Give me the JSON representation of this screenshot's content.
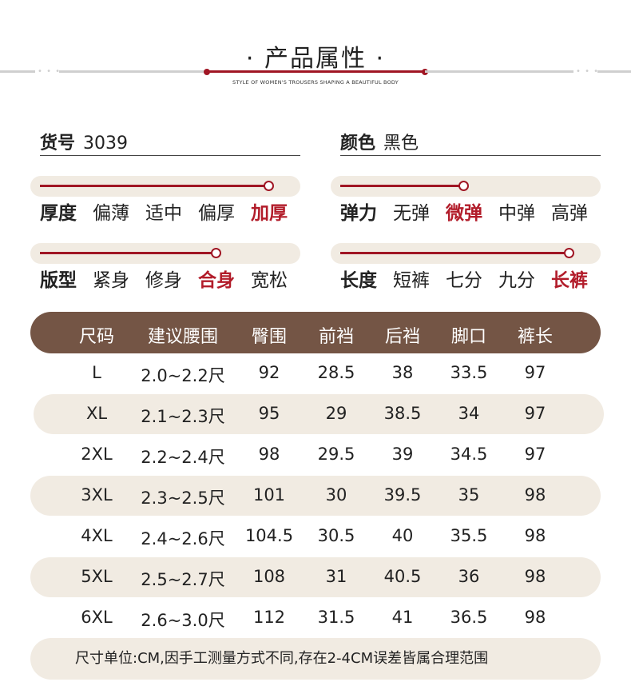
{
  "header": {
    "title": "· 产品属性 ·",
    "subtitle": "STYLE OF WOMEN'S TROUSERS SHAPING A BEAUTIFUL BODY"
  },
  "info": {
    "item_label": "货号",
    "item_value": "3039",
    "color_label": "颜色",
    "color_value": "黑色"
  },
  "attributes": {
    "thickness": {
      "label": "厚度",
      "options": [
        "偏薄",
        "适中",
        "偏厚",
        "加厚"
      ],
      "selected": 3,
      "level": 1.0
    },
    "elasticity": {
      "label": "弹力",
      "options": [
        "无弹",
        "微弹",
        "中弹",
        "高弹"
      ],
      "selected": 1,
      "level": 0.5
    },
    "fit": {
      "label": "版型",
      "options": [
        "紧身",
        "修身",
        "合身",
        "宽松"
      ],
      "selected": 2,
      "level": 0.75
    },
    "length": {
      "label": "长度",
      "options": [
        "短裤",
        "七分",
        "九分",
        "长裤"
      ],
      "selected": 3,
      "level": 1.0
    }
  },
  "table": {
    "headers": [
      "尺码",
      "建议腰围",
      "臀围",
      "前裆",
      "后裆",
      "脚口",
      "裤长"
    ],
    "rows": [
      [
        "L",
        "2.0~2.2尺",
        "92",
        "28.5",
        "38",
        "33.5",
        "97"
      ],
      [
        "XL",
        "2.1~2.3尺",
        "95",
        "29",
        "38.5",
        "34",
        "97"
      ],
      [
        "2XL",
        "2.2~2.4尺",
        "98",
        "29.5",
        "39",
        "34.5",
        "97"
      ],
      [
        "3XL",
        "2.3~2.5尺",
        "101",
        "30",
        "39.5",
        "35",
        "98"
      ],
      [
        "4XL",
        "2.4~2.6尺",
        "104.5",
        "30.5",
        "40",
        "35.5",
        "98"
      ],
      [
        "5XL",
        "2.5~2.7尺",
        "108",
        "31",
        "40.5",
        "36",
        "98"
      ],
      [
        "6XL",
        "2.6~3.0尺",
        "112",
        "31.5",
        "41",
        "36.5",
        "98"
      ]
    ]
  },
  "note": "尺寸单位:CM,因手工测量方式不同,存在2-4CM误差皆属合理范围",
  "colors": {
    "accent": "#a01624",
    "header_brown": "#745545",
    "band": "#f1ebe2"
  }
}
